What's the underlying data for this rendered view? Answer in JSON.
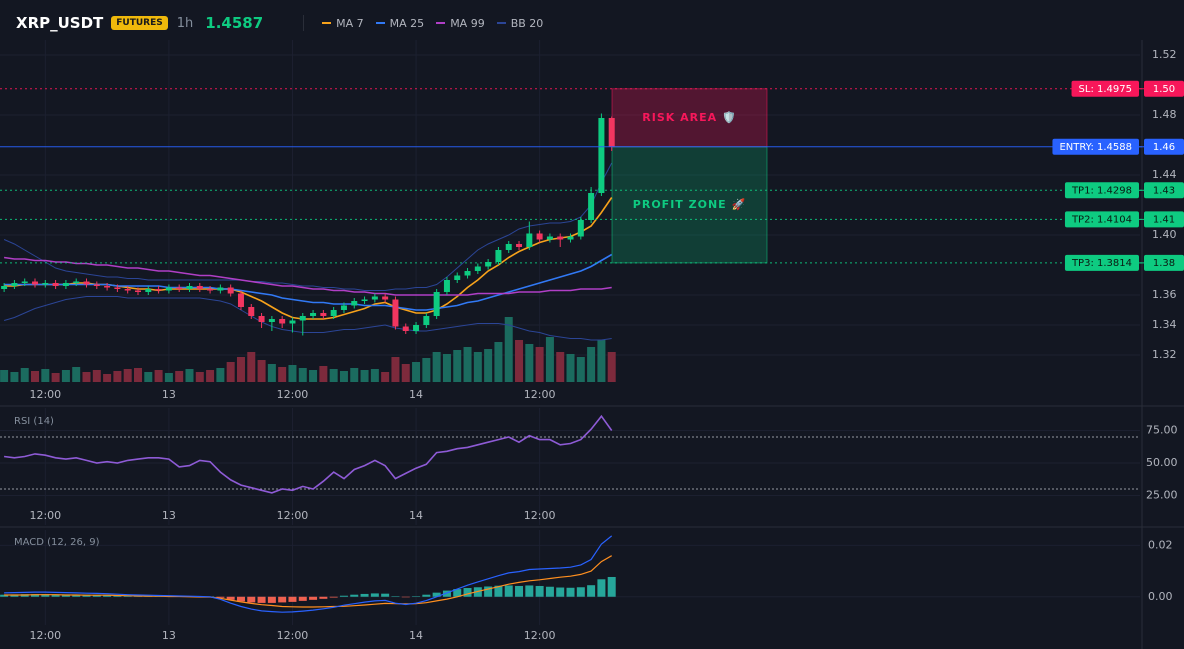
{
  "header": {
    "symbol": "XRP_USDT",
    "badge": "FUTURES",
    "interval": "1h",
    "price": 1.4587
  },
  "chart_data": [
    {
      "type": "candlestick",
      "grid": true,
      "up_color": "#0ecb81",
      "down_color": "#f23660",
      "volume_up_color": "#1b6b5f",
      "volume_down_color": "#7d2a3c",
      "xlim": [
        -0.4,
        110.3
      ],
      "xticks": [
        {
          "value": 4,
          "label": "12:00"
        },
        {
          "value": 16,
          "label": "13"
        },
        {
          "value": 28,
          "label": "12:00"
        },
        {
          "value": 40,
          "label": "14"
        },
        {
          "value": 52,
          "label": "12:00"
        }
      ],
      "ylim": [
        1.302,
        1.53
      ],
      "yticks": [
        1.52,
        1.48,
        1.44,
        {
          "value": 1.4,
          "label": "1.40"
        },
        1.36,
        1.34,
        1.32
      ],
      "volume_lim": [
        0,
        100
      ],
      "open": [
        1.364,
        1.366,
        1.368,
        1.369,
        1.367,
        1.368,
        1.366,
        1.368,
        1.369,
        1.367,
        1.366,
        1.365,
        1.364,
        1.363,
        1.362,
        1.364,
        1.363,
        1.365,
        1.364,
        1.366,
        1.364,
        1.363,
        1.365,
        1.361,
        1.352,
        1.346,
        1.342,
        1.344,
        1.341,
        1.343,
        1.346,
        1.348,
        1.346,
        1.35,
        1.353,
        1.356,
        1.357,
        1.359,
        1.357,
        1.339,
        1.336,
        1.34,
        1.346,
        1.362,
        1.37,
        1.373,
        1.376,
        1.379,
        1.382,
        1.39,
        1.394,
        1.392,
        1.401,
        1.397,
        1.399,
        1.397,
        1.399,
        1.41,
        1.428,
        1.478
      ],
      "high": [
        1.368,
        1.37,
        1.371,
        1.371,
        1.37,
        1.37,
        1.37,
        1.371,
        1.371,
        1.369,
        1.368,
        1.367,
        1.366,
        1.365,
        1.366,
        1.366,
        1.367,
        1.367,
        1.368,
        1.368,
        1.366,
        1.367,
        1.367,
        1.363,
        1.354,
        1.348,
        1.346,
        1.346,
        1.345,
        1.348,
        1.35,
        1.35,
        1.352,
        1.355,
        1.358,
        1.359,
        1.361,
        1.361,
        1.359,
        1.341,
        1.342,
        1.348,
        1.364,
        1.372,
        1.375,
        1.378,
        1.381,
        1.384,
        1.392,
        1.396,
        1.396,
        1.409,
        1.403,
        1.401,
        1.401,
        1.401,
        1.412,
        1.432,
        1.481,
        1.479
      ],
      "low": [
        1.362,
        1.364,
        1.366,
        1.365,
        1.365,
        1.364,
        1.364,
        1.366,
        1.365,
        1.364,
        1.363,
        1.362,
        1.361,
        1.36,
        1.36,
        1.361,
        1.361,
        1.362,
        1.362,
        1.362,
        1.361,
        1.361,
        1.359,
        1.35,
        1.344,
        1.338,
        1.336,
        1.338,
        1.335,
        1.333,
        1.344,
        1.344,
        1.344,
        1.348,
        1.351,
        1.354,
        1.355,
        1.355,
        1.337,
        1.334,
        1.334,
        1.338,
        1.344,
        1.36,
        1.368,
        1.371,
        1.374,
        1.377,
        1.38,
        1.388,
        1.39,
        1.39,
        1.395,
        1.395,
        1.392,
        1.395,
        1.397,
        1.408,
        1.426,
        1.456
      ],
      "close": [
        1.366,
        1.368,
        1.369,
        1.367,
        1.368,
        1.366,
        1.368,
        1.369,
        1.367,
        1.366,
        1.365,
        1.364,
        1.363,
        1.362,
        1.364,
        1.363,
        1.365,
        1.364,
        1.366,
        1.364,
        1.363,
        1.365,
        1.361,
        1.352,
        1.346,
        1.342,
        1.344,
        1.341,
        1.343,
        1.346,
        1.348,
        1.346,
        1.35,
        1.353,
        1.356,
        1.357,
        1.359,
        1.357,
        1.339,
        1.336,
        1.34,
        1.346,
        1.362,
        1.37,
        1.373,
        1.376,
        1.379,
        1.382,
        1.39,
        1.394,
        1.392,
        1.401,
        1.397,
        1.399,
        1.397,
        1.399,
        1.41,
        1.428,
        1.478,
        1.4587
      ],
      "volume": [
        12,
        10,
        14,
        11,
        13,
        9,
        12,
        15,
        10,
        12,
        8,
        11,
        13,
        14,
        10,
        12,
        9,
        11,
        13,
        10,
        12,
        14,
        20,
        25,
        30,
        22,
        18,
        15,
        17,
        14,
        12,
        16,
        13,
        11,
        14,
        12,
        13,
        10,
        25,
        18,
        20,
        24,
        30,
        28,
        32,
        35,
        30,
        33,
        40,
        65,
        42,
        38,
        35,
        45,
        30,
        28,
        25,
        35,
        42,
        30
      ],
      "ma": [
        {
          "name": "MA 7",
          "color": "#f7a21b",
          "values": [
            1.366,
            1.366,
            1.367,
            1.367,
            1.367,
            1.367,
            1.367,
            1.368,
            1.368,
            1.367,
            1.367,
            1.366,
            1.365,
            1.364,
            1.364,
            1.363,
            1.364,
            1.364,
            1.364,
            1.364,
            1.364,
            1.364,
            1.364,
            1.362,
            1.359,
            1.356,
            1.352,
            1.348,
            1.345,
            1.344,
            1.344,
            1.344,
            1.345,
            1.347,
            1.349,
            1.351,
            1.354,
            1.355,
            1.352,
            1.35,
            1.348,
            1.348,
            1.35,
            1.354,
            1.359,
            1.365,
            1.37,
            1.376,
            1.38,
            1.385,
            1.389,
            1.392,
            1.395,
            1.397,
            1.398,
            1.399,
            1.402,
            1.406,
            1.415,
            1.425
          ]
        },
        {
          "name": "MA 25",
          "color": "#3179f5",
          "values": [
            1.367,
            1.367,
            1.367,
            1.367,
            1.367,
            1.367,
            1.367,
            1.367,
            1.367,
            1.367,
            1.367,
            1.366,
            1.366,
            1.366,
            1.366,
            1.366,
            1.365,
            1.365,
            1.365,
            1.365,
            1.365,
            1.364,
            1.364,
            1.363,
            1.362,
            1.361,
            1.36,
            1.358,
            1.357,
            1.356,
            1.355,
            1.355,
            1.354,
            1.354,
            1.354,
            1.353,
            1.353,
            1.353,
            1.352,
            1.351,
            1.35,
            1.35,
            1.351,
            1.352,
            1.353,
            1.355,
            1.356,
            1.358,
            1.36,
            1.362,
            1.364,
            1.366,
            1.368,
            1.37,
            1.372,
            1.374,
            1.376,
            1.379,
            1.383,
            1.387
          ]
        },
        {
          "name": "MA 99",
          "color": "#b03fc6",
          "values": [
            1.385,
            1.384,
            1.384,
            1.383,
            1.383,
            1.382,
            1.382,
            1.381,
            1.381,
            1.38,
            1.38,
            1.379,
            1.378,
            1.378,
            1.377,
            1.376,
            1.376,
            1.375,
            1.374,
            1.373,
            1.373,
            1.372,
            1.371,
            1.37,
            1.369,
            1.368,
            1.367,
            1.366,
            1.366,
            1.365,
            1.364,
            1.364,
            1.363,
            1.363,
            1.362,
            1.362,
            1.361,
            1.361,
            1.36,
            1.36,
            1.36,
            1.36,
            1.36,
            1.36,
            1.36,
            1.36,
            1.361,
            1.361,
            1.361,
            1.361,
            1.362,
            1.362,
            1.362,
            1.363,
            1.363,
            1.363,
            1.364,
            1.364,
            1.364,
            1.365
          ]
        }
      ],
      "bb": {
        "name": "BB 20",
        "color": "#2b4596",
        "upper": [
          1.397,
          1.394,
          1.39,
          1.386,
          1.382,
          1.378,
          1.376,
          1.375,
          1.374,
          1.373,
          1.372,
          1.372,
          1.371,
          1.371,
          1.37,
          1.37,
          1.37,
          1.37,
          1.37,
          1.37,
          1.37,
          1.37,
          1.37,
          1.37,
          1.369,
          1.369,
          1.368,
          1.368,
          1.367,
          1.366,
          1.366,
          1.365,
          1.365,
          1.364,
          1.364,
          1.363,
          1.363,
          1.363,
          1.364,
          1.364,
          1.365,
          1.365,
          1.367,
          1.372,
          1.378,
          1.384,
          1.39,
          1.394,
          1.397,
          1.4,
          1.404,
          1.406,
          1.407,
          1.408,
          1.408,
          1.409,
          1.412,
          1.42,
          1.435,
          1.448
        ],
        "lower": [
          1.343,
          1.345,
          1.348,
          1.351,
          1.353,
          1.355,
          1.357,
          1.358,
          1.359,
          1.359,
          1.359,
          1.359,
          1.358,
          1.358,
          1.358,
          1.358,
          1.358,
          1.358,
          1.358,
          1.358,
          1.357,
          1.356,
          1.354,
          1.35,
          1.346,
          1.342,
          1.339,
          1.337,
          1.336,
          1.335,
          1.335,
          1.335,
          1.336,
          1.337,
          1.337,
          1.338,
          1.339,
          1.34,
          1.338,
          1.337,
          1.336,
          1.336,
          1.337,
          1.338,
          1.339,
          1.34,
          1.341,
          1.341,
          1.341,
          1.34,
          1.338,
          1.336,
          1.335,
          1.333,
          1.332,
          1.331,
          1.331,
          1.33,
          1.33,
          1.331
        ]
      },
      "levels": [
        {
          "label": "SL: 1.4975",
          "value": 1.4975,
          "axis_label": "1.50",
          "color": "#f7175a",
          "text_color": "#ffffff",
          "style": "dotted"
        },
        {
          "label": "ENTRY: 1.4588",
          "value": 1.4588,
          "axis_label": "1.46",
          "color": "#2962ff",
          "text_color": "#ffffff",
          "style": "solid"
        },
        {
          "label": "TP1: 1.4298",
          "value": 1.4298,
          "axis_label": "1.43",
          "color": "#0ecb81",
          "text_color": "#0b1a12",
          "style": "dotted"
        },
        {
          "label": "TP2: 1.4104",
          "value": 1.4104,
          "axis_label": "1.41",
          "color": "#0ecb81",
          "text_color": "#0b1a12",
          "style": "dotted"
        },
        {
          "label": "TP3: 1.3814",
          "value": 1.3814,
          "axis_label": "1.38",
          "color": "#0ecb81",
          "text_color": "#0b1a12",
          "style": "dotted"
        }
      ],
      "zones": [
        {
          "label": "RISK AREA 🛡️",
          "range": [
            1.4588,
            1.4975
          ],
          "color": "#f7175a"
        },
        {
          "label": "PROFIT ZONE 🚀",
          "range": [
            1.3814,
            1.4588
          ],
          "color": "#0ecb81"
        }
      ]
    },
    {
      "type": "line",
      "title": "RSI (14)",
      "color": "#8e5bd6",
      "ylim": [
        2.3,
        92.3
      ],
      "yticks": [
        {
          "value": 75,
          "label": "75.00"
        },
        {
          "value": 50,
          "label": "50.00"
        },
        {
          "value": 25,
          "label": "25.00"
        }
      ],
      "bands": [
        70,
        30
      ],
      "values": [
        55,
        54,
        55,
        57,
        56,
        54,
        53,
        54,
        52,
        50,
        51,
        50,
        52,
        53,
        54,
        54,
        53,
        47,
        48,
        52,
        51,
        43,
        37,
        33,
        31,
        29,
        27,
        30,
        29,
        32,
        30,
        36,
        43,
        38,
        45,
        48,
        52,
        48,
        38,
        42,
        46,
        49,
        58,
        59,
        61,
        62,
        64,
        66,
        68,
        70,
        66,
        71,
        68,
        68,
        64,
        65,
        68,
        76,
        86,
        75
      ]
    },
    {
      "type": "macd",
      "title": "MACD (12, 26, 9)",
      "macd_color": "#2962ff",
      "signal_color": "#ff8f1f",
      "up_color": "#26a69a",
      "down_color": "#ef6150",
      "ylim": [
        -0.011,
        0.026
      ],
      "yticks": [
        0.02,
        {
          "value": 0,
          "label": "0.00"
        }
      ],
      "histogram": [
        0.0008,
        0.0009,
        0.001,
        0.001,
        0.001,
        0.0009,
        0.0009,
        0.0008,
        0.0008,
        0.0007,
        0.0006,
        0.0005,
        0.0004,
        0.0004,
        0.0004,
        0.0003,
        0.0003,
        0.0002,
        0.0002,
        0.0002,
        0.0001,
        -0.0004,
        -0.0012,
        -0.0018,
        -0.0022,
        -0.0024,
        -0.0024,
        -0.0022,
        -0.002,
        -0.0016,
        -0.0012,
        -0.0008,
        -0.0003,
        0.0004,
        0.0008,
        0.0011,
        0.0013,
        0.0012,
        0.0002,
        -0.0002,
        0.0002,
        0.0008,
        0.0016,
        0.0024,
        0.003,
        0.0034,
        0.0037,
        0.004,
        0.0043,
        0.0044,
        0.0042,
        0.0044,
        0.0042,
        0.0039,
        0.0036,
        0.0035,
        0.0037,
        0.0045,
        0.0068,
        0.0077
      ],
      "macd": [
        0.0015,
        0.0016,
        0.0017,
        0.0018,
        0.0018,
        0.0017,
        0.0016,
        0.0015,
        0.0014,
        0.0013,
        0.0012,
        0.001,
        0.0008,
        0.0007,
        0.0006,
        0.0005,
        0.0004,
        0.0003,
        0.0002,
        0.0001,
        0,
        -0.001,
        -0.0025,
        -0.0038,
        -0.0048,
        -0.0055,
        -0.0058,
        -0.006,
        -0.0059,
        -0.0056,
        -0.0052,
        -0.0047,
        -0.0041,
        -0.0033,
        -0.0027,
        -0.0021,
        -0.0016,
        -0.0014,
        -0.0025,
        -0.003,
        -0.0025,
        -0.0015,
        0,
        0.0015,
        0.003,
        0.0045,
        0.0058,
        0.007,
        0.0082,
        0.0093,
        0.0098,
        0.0106,
        0.0108,
        0.011,
        0.0112,
        0.0115,
        0.0124,
        0.0145,
        0.0205,
        0.0237
      ],
      "signal": [
        0.0007,
        0.0007,
        0.0007,
        0.0008,
        0.0008,
        0.0008,
        0.0007,
        0.0007,
        0.0006,
        0.0006,
        0.0006,
        0.0005,
        0.0004,
        0.0003,
        0.0002,
        0.0002,
        0.0001,
        0.0001,
        0,
        -0.0001,
        -0.0001,
        -0.0006,
        -0.0013,
        -0.002,
        -0.0026,
        -0.0031,
        -0.0034,
        -0.0038,
        -0.0039,
        -0.004,
        -0.004,
        -0.0039,
        -0.0038,
        -0.0037,
        -0.0035,
        -0.0032,
        -0.0029,
        -0.0026,
        -0.0027,
        -0.0028,
        -0.0027,
        -0.0023,
        -0.0016,
        -0.0009,
        0,
        0.0011,
        0.0021,
        0.003,
        0.0039,
        0.0049,
        0.0056,
        0.0062,
        0.0066,
        0.0071,
        0.0076,
        0.008,
        0.0087,
        0.01,
        0.0137,
        0.016
      ]
    }
  ]
}
